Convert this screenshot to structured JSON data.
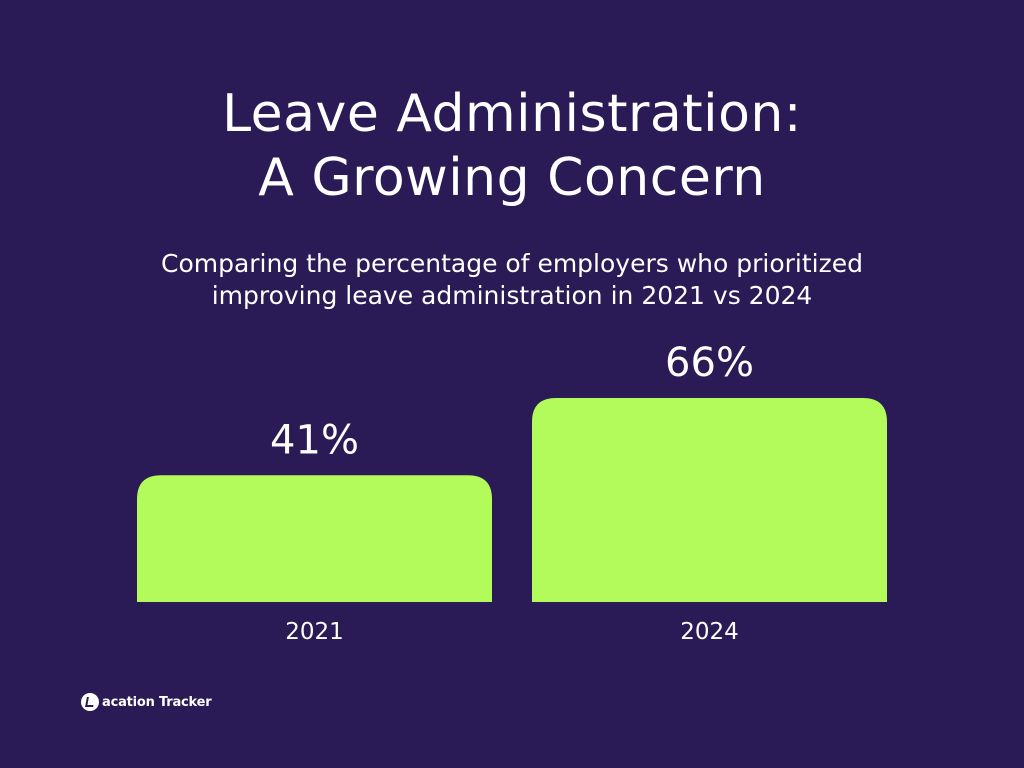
{
  "colors": {
    "background": "#2a1a55",
    "bar": "#b2fb5a",
    "text": "#ffffff"
  },
  "title": {
    "line1": "Leave Administration:",
    "line2": "A Growing Concern"
  },
  "subtitle": {
    "line1": "Comparing the percentage of employers who prioritized",
    "line2": "improving leave administration in 2021 vs 2024"
  },
  "chart_data": {
    "type": "bar",
    "categories": [
      "2021",
      "2024"
    ],
    "values": [
      41,
      66
    ],
    "value_labels": [
      "41%",
      "66%"
    ],
    "title": "Leave Administration: A Growing Concern",
    "subtitle": "Comparing the percentage of employers who prioritized improving leave administration in 2021 vs 2024",
    "xlabel": "",
    "ylabel": "",
    "unit": "%",
    "grid": false,
    "legend": "none"
  },
  "logo": {
    "icon": "vacation-tracker-logo-icon",
    "text": "acation Tracker"
  }
}
